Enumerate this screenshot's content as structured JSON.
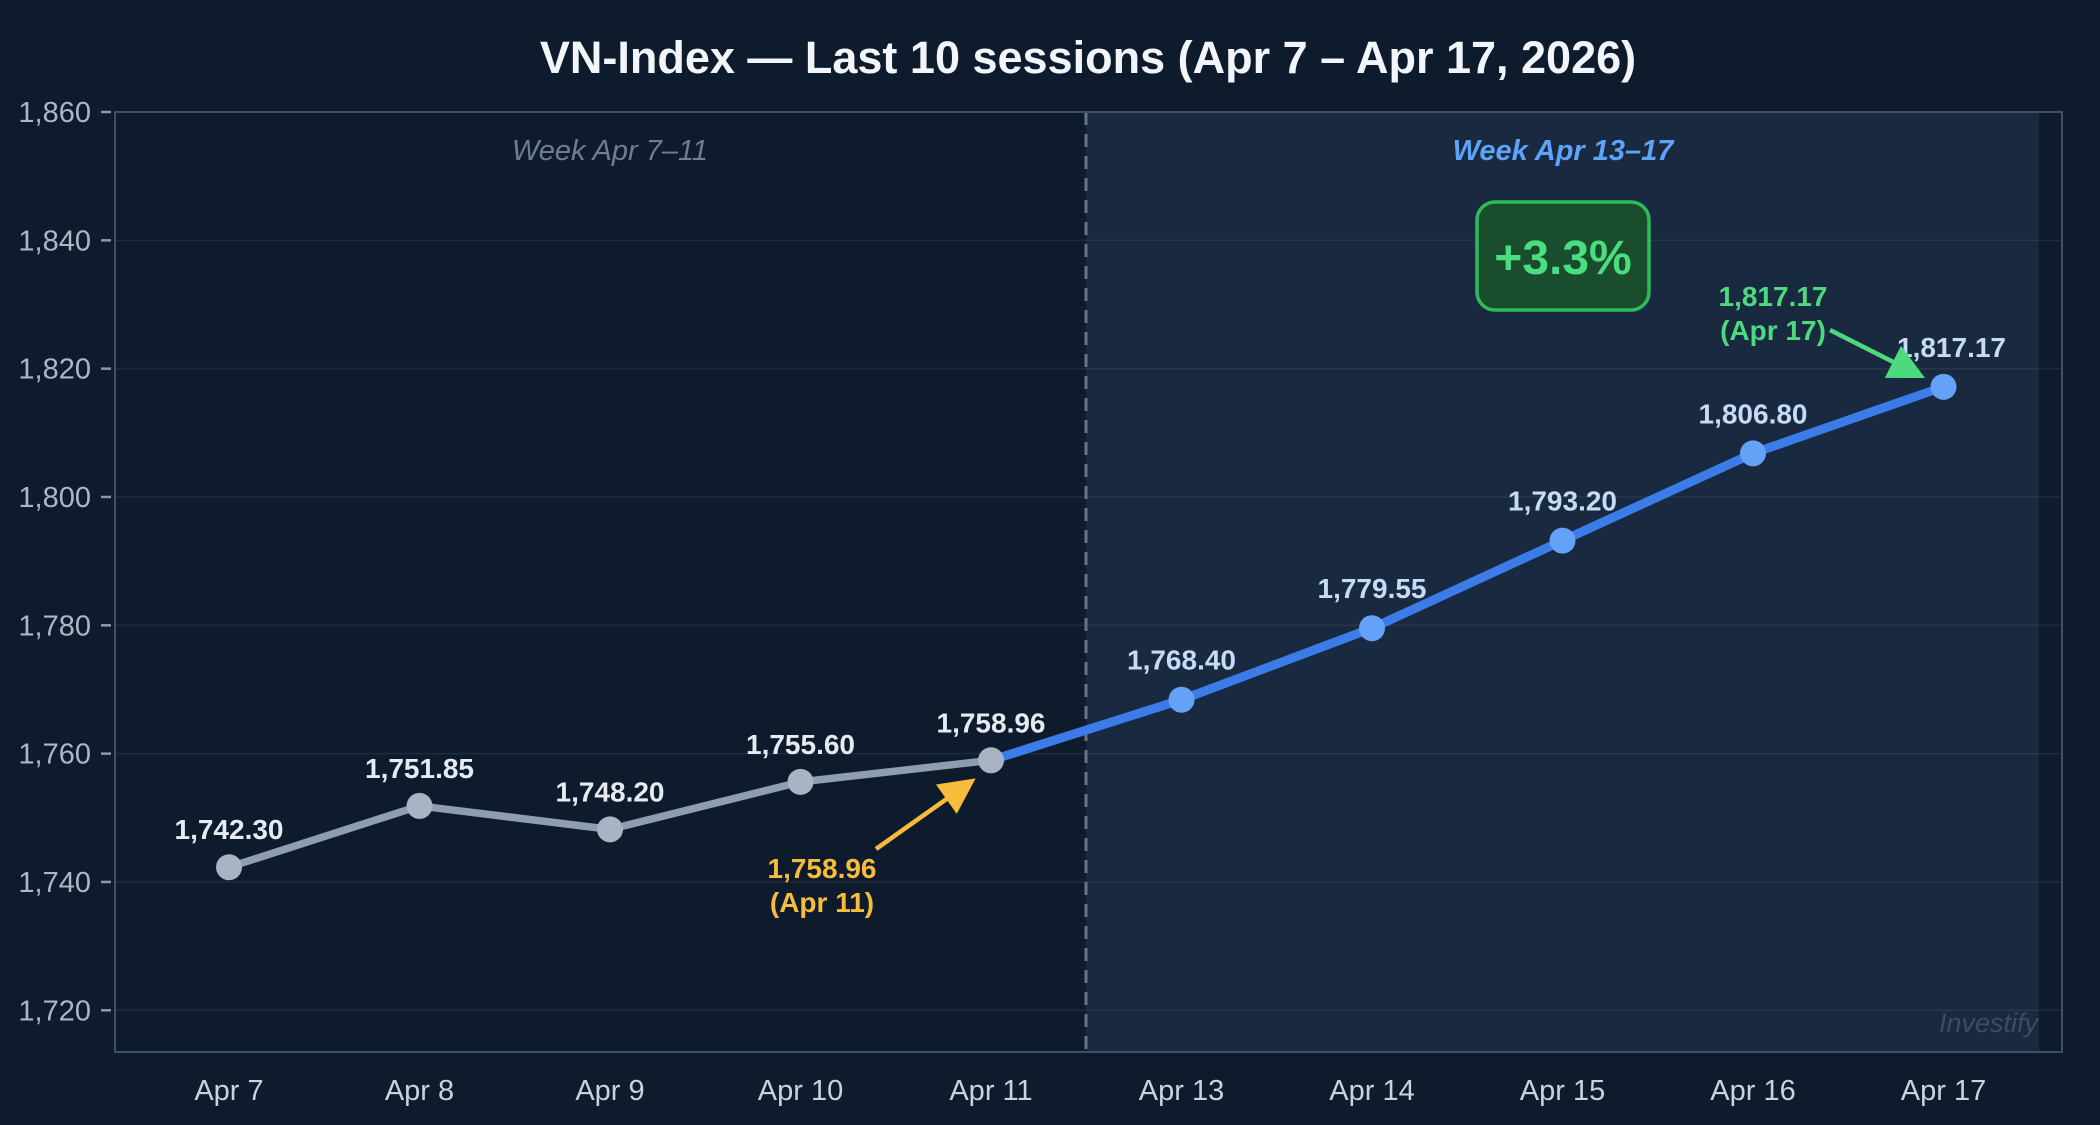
{
  "figure": {
    "title": "VN-Index — Last 10 sessions (Apr 7 – Apr 17, 2026)",
    "watermark": "Investify",
    "colors": {
      "background": "#0e1b2c",
      "week2_shade": "#182940",
      "grid": "rgba(148,163,184,0.12)",
      "spine": "#3e4f66",
      "divider": "#64748b",
      "title": "#f2f6fa",
      "watermark": "#49596f"
    }
  },
  "chart_data": {
    "type": "line",
    "title": "VN-Index — Last 10 sessions (Apr 7 – Apr 17, 2026)",
    "xlabel": "",
    "ylabel": "",
    "ylim": [
      1713.5,
      1860
    ],
    "yticks": [
      1720,
      1740,
      1760,
      1780,
      1800,
      1820,
      1840,
      1860
    ],
    "ytick_labels": [
      "1,720",
      "1,740",
      "1,760",
      "1,780",
      "1,800",
      "1,820",
      "1,840",
      "1,860"
    ],
    "x_categories": [
      "Apr 7",
      "Apr 8",
      "Apr 9",
      "Apr 10",
      "Apr 11",
      "Apr 13",
      "Apr 14",
      "Apr 15",
      "Apr 16",
      "Apr 17"
    ],
    "grid": "horizontal",
    "legend": "none",
    "series": [
      {
        "name": "Week Apr 7–11",
        "x_indices": [
          0,
          1,
          2,
          3,
          4
        ],
        "values": [
          1742.3,
          1751.85,
          1748.2,
          1755.6,
          1758.96
        ],
        "value_labels": [
          "1,742.30",
          "1,751.85",
          "1,748.20",
          "1,755.60",
          "1,758.96"
        ],
        "line_color": "#8e9daf",
        "marker_color": "#a8b4c4",
        "label_color": "#e6ebf2",
        "label_class": "vlabel-gray",
        "line_width": 7.5,
        "marker_radius": 13,
        "skip_first_marker": false
      },
      {
        "name": "Week Apr 13–17",
        "x_indices": [
          4,
          5,
          6,
          7,
          8,
          9
        ],
        "values": [
          1758.96,
          1768.4,
          1779.55,
          1793.2,
          1806.8,
          1817.17
        ],
        "value_labels": [
          "",
          "1,768.40",
          "1,779.55",
          "1,793.20",
          "1,806.80",
          "1,817.17"
        ],
        "line_color": "#3b7ce8",
        "marker_color": "#64a2f7",
        "label_color": "#c7daf6",
        "label_class": "vlabel-blue",
        "line_width": 9,
        "marker_radius": 13,
        "skip_first_marker": true
      }
    ],
    "region_labels": [
      {
        "text": "Week Apr 7–11",
        "color": "#6e7d93"
      },
      {
        "text": "Week Apr 13–17",
        "color": "#5ea3f8"
      }
    ],
    "badge": {
      "label": "+3.3%",
      "text_color": "#4ade80",
      "border_color": "#2dbb5b",
      "fill": "#1a4d2d"
    },
    "annotations": [
      {
        "id": "apr11-callout",
        "lines": [
          "1,758.96",
          "(Apr 11)"
        ],
        "color": "#f8bc3c",
        "points_to": "Apr 11"
      },
      {
        "id": "apr17-callout",
        "lines": [
          "1,817.17",
          "(Apr 17)"
        ],
        "color": "#4dd97e",
        "points_to": "Apr 17"
      }
    ]
  }
}
